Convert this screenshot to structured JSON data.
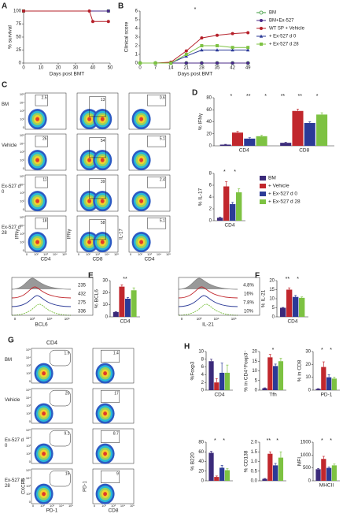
{
  "chart_data": [
    {
      "type": "line",
      "panel": "A",
      "y_label": "% survival",
      "x_label": "Days post BMT",
      "xlim": [
        0,
        50
      ],
      "xticks": [
        0,
        10,
        20,
        30,
        40,
        50
      ],
      "ylim": [
        0,
        100
      ],
      "yticks": [
        0,
        25,
        50,
        75,
        100
      ],
      "series": [
        {
          "color": "#3a9a3a",
          "marker": "square",
          "x": [
            0,
            49
          ],
          "values": [
            100,
            100
          ]
        },
        {
          "color": "#4b2a8a",
          "marker": "circle",
          "x": [
            0,
            49
          ],
          "values": [
            100,
            100
          ]
        },
        {
          "color": "#b5202a",
          "marker": "circle",
          "x": [
            0,
            38,
            40,
            49
          ],
          "values": [
            100,
            100,
            80,
            80
          ]
        }
      ]
    },
    {
      "type": "line",
      "panel": "B",
      "y_label": "Clinical score",
      "x_label": "Days post BMT",
      "x": [
        0,
        7,
        14,
        21,
        28,
        35,
        42,
        49
      ],
      "xlim": [
        0,
        50
      ],
      "xticks": [
        0,
        7,
        14,
        21,
        28,
        35,
        42,
        49
      ],
      "ylim": [
        0,
        6
      ],
      "yticks": [
        0,
        1,
        2,
        3,
        4,
        5,
        6
      ],
      "legend": "right",
      "significance": [
        "*"
      ],
      "series": [
        {
          "name": "BM",
          "color": "#3a9a3a",
          "marker": "open-circle",
          "values": [
            0,
            0,
            0,
            0,
            0,
            0,
            0,
            0
          ]
        },
        {
          "name": "BM+Ex-527",
          "color": "#4b2a8a",
          "marker": "circle",
          "values": [
            0,
            0,
            0,
            0,
            0,
            0,
            0,
            0
          ]
        },
        {
          "name": "WT SP + Vehicle",
          "color": "#b5202a",
          "marker": "circle",
          "values": [
            0,
            0,
            0.1,
            1.4,
            2.9,
            3.2,
            3.4,
            3.5
          ]
        },
        {
          "name": "+ Ex-527 d 0",
          "color": "#2b3a97",
          "marker": "triangle",
          "values": [
            0,
            0,
            0,
            0.8,
            1.5,
            1.5,
            1.5,
            1.5
          ]
        },
        {
          "name": "+ Ex-527 d 28",
          "color": "#7dc242",
          "marker": "square",
          "values": [
            0,
            0,
            0,
            1.0,
            2.0,
            2.0,
            1.8,
            1.8
          ]
        }
      ]
    },
    {
      "type": "bar",
      "panel": "D",
      "y_label": "% IFNγ",
      "categories": [
        "CD4",
        "CD8"
      ],
      "ylim": [
        0,
        80
      ],
      "yticks": [
        0,
        20,
        40,
        60,
        80
      ],
      "significance": [
        "*",
        "**",
        "*",
        "**",
        "**",
        "*"
      ],
      "series": [
        {
          "color": "#3b2a7a",
          "values": [
            2,
            5
          ],
          "errors": [
            0.5,
            1
          ]
        },
        {
          "color": "#c1272d",
          "values": [
            22,
            58
          ],
          "errors": [
            2,
            3
          ]
        },
        {
          "color": "#2b3a97",
          "values": [
            12,
            38
          ],
          "errors": [
            1.5,
            2
          ]
        },
        {
          "color": "#7dc242",
          "values": [
            16,
            52
          ],
          "errors": [
            1.5,
            3
          ]
        }
      ]
    },
    {
      "type": "bar",
      "y_label": "% IL-17",
      "categories": [
        "CD4"
      ],
      "ylim": [
        0,
        8
      ],
      "yticks": [
        0,
        2,
        4,
        6,
        8
      ],
      "legend": "right",
      "significance": [
        "*",
        "*"
      ],
      "series": [
        {
          "name": "BM",
          "color": "#3b2a7a",
          "values": [
            0.5
          ],
          "errors": [
            0.1
          ]
        },
        {
          "name": "+ Vehicle",
          "color": "#c1272d",
          "values": [
            5.8
          ],
          "errors": [
            0.8
          ]
        },
        {
          "name": "+ Ex-527 d 0",
          "color": "#2b3a97",
          "values": [
            2.8
          ],
          "errors": [
            0.3
          ]
        },
        {
          "name": "+ Ex-527 d 28",
          "color": "#7dc242",
          "values": [
            4.8
          ],
          "errors": [
            0.6
          ]
        }
      ]
    },
    {
      "type": "bar",
      "panel": "E",
      "y_label": "% BCL6",
      "categories": [
        "CD4"
      ],
      "ylim": [
        0,
        30
      ],
      "yticks": [
        0,
        10,
        20,
        30
      ],
      "significance": [
        "**"
      ],
      "histogram": {
        "x_label": "BCL6",
        "labels": [
          235,
          432,
          275,
          336
        ]
      },
      "series": [
        {
          "color": "#3b2a7a",
          "values": [
            4
          ],
          "errors": [
            0.3
          ]
        },
        {
          "color": "#c1272d",
          "values": [
            25
          ],
          "errors": [
            1.5
          ]
        },
        {
          "color": "#2b3a97",
          "values": [
            15
          ],
          "errors": [
            1
          ]
        },
        {
          "color": "#7dc242",
          "values": [
            22
          ],
          "errors": [
            2
          ]
        }
      ]
    },
    {
      "type": "bar",
      "panel": "F",
      "y_label": "% IL-21",
      "categories": [
        "CD4"
      ],
      "ylim": [
        0,
        20
      ],
      "yticks": [
        0,
        5,
        10,
        15,
        20
      ],
      "significance": [
        "**",
        "*"
      ],
      "histogram": {
        "x_label": "IL-21",
        "labels": [
          "4.8%",
          "16%",
          "7.8%",
          "10%"
        ]
      },
      "series": [
        {
          "color": "#3b2a7a",
          "values": [
            5
          ],
          "errors": [
            0.2
          ]
        },
        {
          "color": "#c1272d",
          "values": [
            15
          ],
          "errors": [
            1
          ]
        },
        {
          "color": "#2b3a97",
          "values": [
            11
          ],
          "errors": [
            0.8
          ]
        },
        {
          "color": "#7dc242",
          "values": [
            10.5
          ],
          "errors": [
            0.5
          ]
        }
      ]
    },
    {
      "type": "bar",
      "panel": "H",
      "y_label": "%Foxp3",
      "categories": [
        "CD4"
      ],
      "ylim": [
        0,
        10
      ],
      "yticks": [
        0,
        2,
        4,
        6,
        8,
        10
      ],
      "series": [
        {
          "color": "#3b2a7a",
          "values": [
            7.5
          ],
          "errors": [
            0.5
          ]
        },
        {
          "color": "#c1272d",
          "values": [
            2
          ],
          "errors": [
            1
          ]
        },
        {
          "color": "#2b3a97",
          "values": [
            4.5
          ],
          "errors": [
            2.5
          ]
        },
        {
          "color": "#7dc242",
          "values": [
            4.5
          ],
          "errors": [
            2
          ]
        }
      ]
    },
    {
      "type": "bar",
      "y_label": "% in CD4⁺Foxp3⁻",
      "categories": [
        "Tfh"
      ],
      "ylim": [
        0,
        20
      ],
      "yticks": [
        0,
        5,
        10,
        15,
        20
      ],
      "significance": [
        "*"
      ],
      "series": [
        {
          "color": "#3b2a7a",
          "values": [
            1
          ],
          "errors": [
            0.2
          ]
        },
        {
          "color": "#c1272d",
          "values": [
            17
          ],
          "errors": [
            1.5
          ]
        },
        {
          "color": "#2b3a97",
          "values": [
            12.5
          ],
          "errors": [
            1
          ]
        },
        {
          "color": "#7dc242",
          "values": [
            15
          ],
          "errors": [
            1.5
          ]
        }
      ]
    },
    {
      "type": "bar",
      "y_label": "% in CD8",
      "categories": [
        "PD-1"
      ],
      "ylim": [
        0,
        30
      ],
      "yticks": [
        0,
        10,
        20,
        30
      ],
      "significance": [
        "*",
        "*"
      ],
      "series": [
        {
          "color": "#3b2a7a",
          "values": [
            1
          ],
          "errors": [
            0.2
          ]
        },
        {
          "color": "#c1272d",
          "values": [
            18
          ],
          "errors": [
            4
          ]
        },
        {
          "color": "#2b3a97",
          "values": [
            10
          ],
          "errors": [
            2
          ]
        },
        {
          "color": "#7dc242",
          "values": [
            9
          ],
          "errors": [
            1
          ]
        }
      ]
    },
    {
      "type": "bar",
      "y_label": "% B220",
      "categories": [
        null
      ],
      "ylim": [
        0,
        80
      ],
      "yticks": [
        0,
        20,
        40,
        60,
        80
      ],
      "significance": [
        "*",
        "*"
      ],
      "series": [
        {
          "color": "#3b2a7a",
          "values": [
            58
          ],
          "errors": [
            3
          ]
        },
        {
          "color": "#c1272d",
          "values": [
            8
          ],
          "errors": [
            2
          ]
        },
        {
          "color": "#2b3a97",
          "values": [
            27
          ],
          "errors": [
            5
          ]
        },
        {
          "color": "#7dc242",
          "values": [
            22
          ],
          "errors": [
            3
          ]
        }
      ]
    },
    {
      "type": "bar",
      "y_label": "% CD138",
      "categories": [
        null
      ],
      "ylim": [
        0,
        2
      ],
      "yticks": [
        {
          "value": 0,
          "label": "0.0"
        },
        {
          "value": 0.5,
          "label": "0.5"
        },
        {
          "value": 1,
          "label": "1.0"
        },
        {
          "value": 1.5,
          "label": "1.5"
        },
        {
          "value": 2,
          "label": "2.0"
        }
      ],
      "significance": [
        "**",
        "*"
      ],
      "series": [
        {
          "color": "#3b2a7a",
          "values": [
            0.1
          ],
          "errors": [
            0.02
          ]
        },
        {
          "color": "#c1272d",
          "values": [
            1.4
          ],
          "errors": [
            0.1
          ]
        },
        {
          "color": "#2b3a97",
          "values": [
            0.8
          ],
          "errors": [
            0.1
          ]
        },
        {
          "color": "#7dc242",
          "values": [
            1.2
          ],
          "errors": [
            0.3
          ]
        }
      ]
    },
    {
      "type": "bar",
      "y_label": "MFI",
      "categories": [
        "MHCII"
      ],
      "ylim": [
        0,
        1500
      ],
      "yticks": [
        0,
        500,
        1000,
        1500
      ],
      "significance": [
        "*",
        "*"
      ],
      "series": [
        {
          "color": "#3b2a7a",
          "values": [
            450
          ],
          "errors": [
            30
          ]
        },
        {
          "color": "#c1272d",
          "values": [
            850
          ],
          "errors": [
            100
          ]
        },
        {
          "color": "#2b3a97",
          "values": [
            500
          ],
          "errors": [
            40
          ]
        },
        {
          "color": "#7dc242",
          "values": [
            600
          ],
          "errors": [
            50
          ]
        }
      ]
    }
  ],
  "flow_ticks": [
    "0",
    "10²",
    "10³",
    "10⁴",
    "10⁵"
  ],
  "flow_panels": [
    {
      "panel": "C",
      "row_labels": [
        "BM",
        "Vehicle",
        "Ex-527 d 0",
        "Ex-527 d 28"
      ],
      "columns": [
        {
          "x_label": "CD4",
          "y_label": "IFNγ"
        },
        {
          "x_label": "CD8",
          "y_label": "IFNγ"
        },
        {
          "x_label": "CD4",
          "y_label": "IL-17"
        }
      ],
      "gates": [
        [
          2.5,
          13,
          0.6
        ],
        [
          26,
          54,
          5.1
        ],
        [
          11,
          39,
          2.4
        ],
        [
          18,
          58,
          5.1
        ]
      ]
    },
    {
      "panel": "G",
      "header": "CD4",
      "row_labels": [
        "BM",
        "Vehicle",
        "Ex-527 d 0",
        "Ex-527 d 28"
      ],
      "columns": [
        {
          "x_label": "PD-1",
          "y_label": "CXCR5"
        },
        {
          "x_label": "CD8",
          "y_label": "PD-1"
        }
      ],
      "gates": [
        [
          1.9,
          1.4
        ],
        [
          20,
          17
        ],
        [
          9.1,
          8.7
        ],
        [
          15,
          9
        ]
      ]
    }
  ]
}
